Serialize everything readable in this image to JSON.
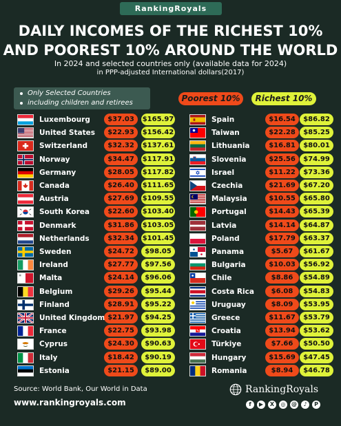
{
  "brand_badge": "RankingRoyals",
  "title_line1": "DAILY INCOMES OF THE RICHEST 10%",
  "title_line2": "AND POOREST 10% AROUND THE WORLD",
  "subtitle1": "In 2024 and selected countries only (available data for 2024)",
  "subtitle2": "in PPP-adjusted International dollars(2017)",
  "note_line1": "Only Selected Countries",
  "note_line2": "including children and retirees",
  "source": "Source: World Bank, Our World in Data",
  "website": "www.rankingroyals.com",
  "footer_brand": "RankingRoyals",
  "colors": {
    "poorest": "#ef4a1a",
    "richest": "#dff23a",
    "background": "#1b2a25"
  },
  "social_icons": [
    "facebook-icon",
    "youtube-icon",
    "x-icon",
    "instagram-icon",
    "threads-icon",
    "tiktok-icon",
    "pinterest-icon"
  ],
  "chart_data": {
    "type": "table",
    "series": [
      {
        "name": "Poorest 10%"
      },
      {
        "name": "Richest 10%"
      }
    ],
    "rows": [
      {
        "country": "Luxembourg",
        "flag": "lu",
        "poorest": "$37.03",
        "richest": "$165.97"
      },
      {
        "country": "United States",
        "flag": "us",
        "poorest": "$22.93",
        "richest": "$156.42"
      },
      {
        "country": "Switzerland",
        "flag": "ch",
        "poorest": "$32.32",
        "richest": "$137.61"
      },
      {
        "country": "Norway",
        "flag": "no",
        "poorest": "$34.47",
        "richest": "$117.91"
      },
      {
        "country": "Germany",
        "flag": "de",
        "poorest": "$28.05",
        "richest": "$117.82"
      },
      {
        "country": "Canada",
        "flag": "ca",
        "poorest": "$26.40",
        "richest": "$111.65"
      },
      {
        "country": "Austria",
        "flag": "at",
        "poorest": "$27.69",
        "richest": "$109.55"
      },
      {
        "country": "South Korea",
        "flag": "kr",
        "poorest": "$22.60",
        "richest": "$103.40"
      },
      {
        "country": "Denmark",
        "flag": "dk",
        "poorest": "$31.86",
        "richest": "$103.05"
      },
      {
        "country": "Netherlands",
        "flag": "nl",
        "poorest": "$32.34",
        "richest": "$101.45"
      },
      {
        "country": "Sweden",
        "flag": "se",
        "poorest": "$24.72",
        "richest": "$98.05"
      },
      {
        "country": "Ireland",
        "flag": "ie",
        "poorest": "$27.77",
        "richest": "$97.56"
      },
      {
        "country": "Malta",
        "flag": "mt",
        "poorest": "$24.14",
        "richest": "$96.06"
      },
      {
        "country": "Belgium",
        "flag": "be",
        "poorest": "$29.26",
        "richest": "$95.44"
      },
      {
        "country": "Finland",
        "flag": "fi",
        "poorest": "$28.91",
        "richest": "$95.22"
      },
      {
        "country": "United Kingdom",
        "flag": "gb",
        "poorest": "$21.97",
        "richest": "$94.25"
      },
      {
        "country": "France",
        "flag": "fr",
        "poorest": "$22.75",
        "richest": "$93.98"
      },
      {
        "country": "Cyprus",
        "flag": "cy",
        "poorest": "$24.30",
        "richest": "$90.63"
      },
      {
        "country": "Italy",
        "flag": "it",
        "poorest": "$18.42",
        "richest": "$90.19"
      },
      {
        "country": "Estonia",
        "flag": "ee",
        "poorest": "$21.15",
        "richest": "$89.00"
      },
      {
        "country": "Spain",
        "flag": "es",
        "poorest": "$16.54",
        "richest": "$86.82"
      },
      {
        "country": "Taiwan",
        "flag": "tw",
        "poorest": "$22.28",
        "richest": "$85.25"
      },
      {
        "country": "Lithuania",
        "flag": "lt",
        "poorest": "$16.81",
        "richest": "$80.01"
      },
      {
        "country": "Slovenia",
        "flag": "si",
        "poorest": "$25.56",
        "richest": "$74.99"
      },
      {
        "country": "Israel",
        "flag": "il",
        "poorest": "$11.22",
        "richest": "$73.36"
      },
      {
        "country": "Czechia",
        "flag": "cz",
        "poorest": "$21.69",
        "richest": "$67.20"
      },
      {
        "country": "Malaysia",
        "flag": "my",
        "poorest": "$10.55",
        "richest": "$65.80"
      },
      {
        "country": "Portugal",
        "flag": "pt",
        "poorest": "$14.43",
        "richest": "$65.39"
      },
      {
        "country": "Latvia",
        "flag": "lv",
        "poorest": "$14.14",
        "richest": "$64.87"
      },
      {
        "country": "Poland",
        "flag": "pl",
        "poorest": "$17.79",
        "richest": "$63.37"
      },
      {
        "country": "Panama",
        "flag": "pa",
        "poorest": "$5.67",
        "richest": "$61.67"
      },
      {
        "country": "Bulgaria",
        "flag": "bg",
        "poorest": "$10.03",
        "richest": "$56.92"
      },
      {
        "country": "Chile",
        "flag": "cl",
        "poorest": "$8.86",
        "richest": "$54.89"
      },
      {
        "country": "Costa Rica",
        "flag": "cr",
        "poorest": "$6.08",
        "richest": "$54.83"
      },
      {
        "country": "Uruguay",
        "flag": "uy",
        "poorest": "$8.09",
        "richest": "$53.95"
      },
      {
        "country": "Greece",
        "flag": "gr",
        "poorest": "$11.67",
        "richest": "$53.79"
      },
      {
        "country": "Croatia",
        "flag": "hr",
        "poorest": "$13.94",
        "richest": "$53.62"
      },
      {
        "country": "Türkiye",
        "flag": "tr",
        "poorest": "$7.66",
        "richest": "$50.50"
      },
      {
        "country": "Hungary",
        "flag": "hu",
        "poorest": "$15.69",
        "richest": "$47.45"
      },
      {
        "country": "Romania",
        "flag": "ro",
        "poorest": "$8.94",
        "richest": "$46.78"
      }
    ]
  }
}
